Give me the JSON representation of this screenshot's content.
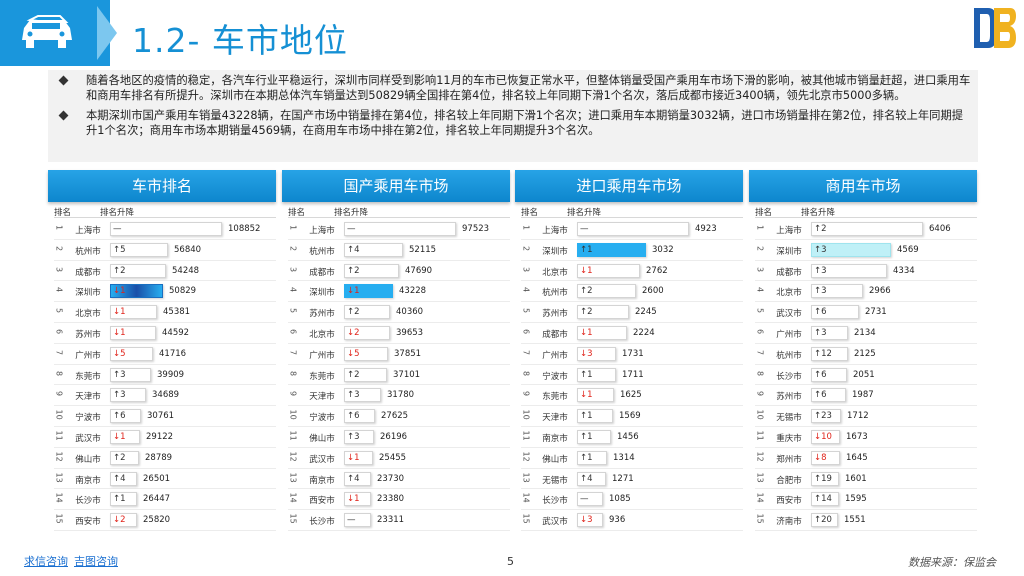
{
  "title": "1.2- 车市地位",
  "bullets": [
    "随着各地区的疫情的稳定，各汽车行业平稳运行，深圳市同样受到影响11月的车市已恢复正常水平，但整体销量受国产乘用车市场下滑的影响，被其他城市销量赶超，进口乘用车和商用车排名有所提升。深圳市在本期总体汽车销量达到50829辆全国排在第4位，排名较上年同期下滑1个名次，落后成都市接近3400辆，领先北京市5000多辆。",
    "本期深圳市国产乘用车销量43228辆，在国产市场中销量排在第4位，排名较上年同期下滑1个名次；进口乘用车本期销量3032辆，进口市场销量排在第2位，排名较上年同期提升1个名次；商用车市场本期销量4569辆，在商用车市场中排在第2位，排名较上年同期提升3个名次。"
  ],
  "col_rank": "排名",
  "col_change": "排名升降",
  "panels": [
    {
      "title": "车市排名",
      "rows": [
        {
          "rank": "1",
          "city": "上海市",
          "change": "—",
          "dir": "flat",
          "value": "108852",
          "ratio": 1.0,
          "hl": ""
        },
        {
          "rank": "2",
          "city": "杭州市",
          "change": "↑5",
          "dir": "up",
          "value": "56840",
          "ratio": 0.52,
          "hl": ""
        },
        {
          "rank": "3",
          "city": "成都市",
          "change": "↑2",
          "dir": "up",
          "value": "54248",
          "ratio": 0.5,
          "hl": ""
        },
        {
          "rank": "4",
          "city": "深圳市",
          "change": "↓1",
          "dir": "down",
          "value": "50829",
          "ratio": 0.47,
          "hl": "dark"
        },
        {
          "rank": "5",
          "city": "北京市",
          "change": "↓1",
          "dir": "down",
          "value": "45381",
          "ratio": 0.42,
          "hl": ""
        },
        {
          "rank": "6",
          "city": "苏州市",
          "change": "↓1",
          "dir": "down",
          "value": "44592",
          "ratio": 0.41,
          "hl": ""
        },
        {
          "rank": "7",
          "city": "广州市",
          "change": "↓5",
          "dir": "down",
          "value": "41716",
          "ratio": 0.38,
          "hl": ""
        },
        {
          "rank": "8",
          "city": "东莞市",
          "change": "↑3",
          "dir": "up",
          "value": "39909",
          "ratio": 0.37,
          "hl": ""
        },
        {
          "rank": "9",
          "city": "天津市",
          "change": "↑3",
          "dir": "up",
          "value": "34689",
          "ratio": 0.32,
          "hl": ""
        },
        {
          "rank": "10",
          "city": "宁波市",
          "change": "↑6",
          "dir": "up",
          "value": "30761",
          "ratio": 0.28,
          "hl": ""
        },
        {
          "rank": "11",
          "city": "武汉市",
          "change": "↓1",
          "dir": "down",
          "value": "29122",
          "ratio": 0.27,
          "hl": ""
        },
        {
          "rank": "12",
          "city": "佛山市",
          "change": "↑2",
          "dir": "up",
          "value": "28789",
          "ratio": 0.26,
          "hl": ""
        },
        {
          "rank": "13",
          "city": "南京市",
          "change": "↑4",
          "dir": "up",
          "value": "26501",
          "ratio": 0.24,
          "hl": ""
        },
        {
          "rank": "14",
          "city": "长沙市",
          "change": "↑1",
          "dir": "up",
          "value": "26447",
          "ratio": 0.24,
          "hl": ""
        },
        {
          "rank": "15",
          "city": "西安市",
          "change": "↓2",
          "dir": "down",
          "value": "25820",
          "ratio": 0.24,
          "hl": ""
        }
      ]
    },
    {
      "title": "国产乘用车市场",
      "rows": [
        {
          "rank": "1",
          "city": "上海市",
          "change": "—",
          "dir": "flat",
          "value": "97523",
          "ratio": 1.0,
          "hl": ""
        },
        {
          "rank": "2",
          "city": "杭州市",
          "change": "↑4",
          "dir": "up",
          "value": "52115",
          "ratio": 0.53,
          "hl": ""
        },
        {
          "rank": "3",
          "city": "成都市",
          "change": "↑2",
          "dir": "up",
          "value": "47690",
          "ratio": 0.49,
          "hl": ""
        },
        {
          "rank": "4",
          "city": "深圳市",
          "change": "↓1",
          "dir": "down",
          "value": "43228",
          "ratio": 0.44,
          "hl": "blue"
        },
        {
          "rank": "5",
          "city": "苏州市",
          "change": "↑2",
          "dir": "up",
          "value": "40360",
          "ratio": 0.41,
          "hl": ""
        },
        {
          "rank": "6",
          "city": "北京市",
          "change": "↓2",
          "dir": "down",
          "value": "39653",
          "ratio": 0.41,
          "hl": ""
        },
        {
          "rank": "7",
          "city": "广州市",
          "change": "↓5",
          "dir": "down",
          "value": "37851",
          "ratio": 0.39,
          "hl": ""
        },
        {
          "rank": "8",
          "city": "东莞市",
          "change": "↑2",
          "dir": "up",
          "value": "37101",
          "ratio": 0.38,
          "hl": ""
        },
        {
          "rank": "9",
          "city": "天津市",
          "change": "↑3",
          "dir": "up",
          "value": "31780",
          "ratio": 0.33,
          "hl": ""
        },
        {
          "rank": "10",
          "city": "宁波市",
          "change": "↑6",
          "dir": "up",
          "value": "27625",
          "ratio": 0.28,
          "hl": ""
        },
        {
          "rank": "11",
          "city": "佛山市",
          "change": "↑3",
          "dir": "up",
          "value": "26196",
          "ratio": 0.27,
          "hl": ""
        },
        {
          "rank": "12",
          "city": "武汉市",
          "change": "↓1",
          "dir": "down",
          "value": "25455",
          "ratio": 0.26,
          "hl": ""
        },
        {
          "rank": "13",
          "city": "南京市",
          "change": "↑4",
          "dir": "up",
          "value": "23730",
          "ratio": 0.24,
          "hl": ""
        },
        {
          "rank": "14",
          "city": "西安市",
          "change": "↓1",
          "dir": "down",
          "value": "23380",
          "ratio": 0.24,
          "hl": ""
        },
        {
          "rank": "15",
          "city": "长沙市",
          "change": "—",
          "dir": "flat",
          "value": "23311",
          "ratio": 0.24,
          "hl": ""
        }
      ]
    },
    {
      "title": "进口乘用车市场",
      "rows": [
        {
          "rank": "1",
          "city": "上海市",
          "change": "—",
          "dir": "flat",
          "value": "4923",
          "ratio": 1.0,
          "hl": ""
        },
        {
          "rank": "2",
          "city": "深圳市",
          "change": "↑1",
          "dir": "up",
          "value": "3032",
          "ratio": 0.62,
          "hl": "blue"
        },
        {
          "rank": "3",
          "city": "北京市",
          "change": "↓1",
          "dir": "down",
          "value": "2762",
          "ratio": 0.56,
          "hl": ""
        },
        {
          "rank": "4",
          "city": "杭州市",
          "change": "↑2",
          "dir": "up",
          "value": "2600",
          "ratio": 0.53,
          "hl": ""
        },
        {
          "rank": "5",
          "city": "苏州市",
          "change": "↑2",
          "dir": "up",
          "value": "2245",
          "ratio": 0.46,
          "hl": ""
        },
        {
          "rank": "6",
          "city": "成都市",
          "change": "↓1",
          "dir": "down",
          "value": "2224",
          "ratio": 0.45,
          "hl": ""
        },
        {
          "rank": "7",
          "city": "广州市",
          "change": "↓3",
          "dir": "down",
          "value": "1731",
          "ratio": 0.35,
          "hl": ""
        },
        {
          "rank": "8",
          "city": "宁波市",
          "change": "↑1",
          "dir": "up",
          "value": "1711",
          "ratio": 0.35,
          "hl": ""
        },
        {
          "rank": "9",
          "city": "东莞市",
          "change": "↓1",
          "dir": "down",
          "value": "1625",
          "ratio": 0.33,
          "hl": ""
        },
        {
          "rank": "10",
          "city": "天津市",
          "change": "↑1",
          "dir": "up",
          "value": "1569",
          "ratio": 0.32,
          "hl": ""
        },
        {
          "rank": "11",
          "city": "南京市",
          "change": "↑1",
          "dir": "up",
          "value": "1456",
          "ratio": 0.3,
          "hl": ""
        },
        {
          "rank": "12",
          "city": "佛山市",
          "change": "↑1",
          "dir": "up",
          "value": "1314",
          "ratio": 0.27,
          "hl": ""
        },
        {
          "rank": "13",
          "city": "无锡市",
          "change": "↑4",
          "dir": "up",
          "value": "1271",
          "ratio": 0.26,
          "hl": ""
        },
        {
          "rank": "14",
          "city": "长沙市",
          "change": "—",
          "dir": "flat",
          "value": "1085",
          "ratio": 0.22,
          "hl": ""
        },
        {
          "rank": "15",
          "city": "武汉市",
          "change": "↓3",
          "dir": "down",
          "value": "936",
          "ratio": 0.19,
          "hl": ""
        }
      ]
    },
    {
      "title": "商用车市场",
      "rows": [
        {
          "rank": "1",
          "city": "上海市",
          "change": "↑2",
          "dir": "up",
          "value": "6406",
          "ratio": 1.0,
          "hl": ""
        },
        {
          "rank": "2",
          "city": "深圳市",
          "change": "↑3",
          "dir": "up",
          "value": "4569",
          "ratio": 0.71,
          "hl": "light"
        },
        {
          "rank": "3",
          "city": "成都市",
          "change": "↑3",
          "dir": "up",
          "value": "4334",
          "ratio": 0.68,
          "hl": ""
        },
        {
          "rank": "4",
          "city": "北京市",
          "change": "↑3",
          "dir": "up",
          "value": "2966",
          "ratio": 0.46,
          "hl": ""
        },
        {
          "rank": "5",
          "city": "武汉市",
          "change": "↑6",
          "dir": "up",
          "value": "2731",
          "ratio": 0.43,
          "hl": ""
        },
        {
          "rank": "6",
          "city": "广州市",
          "change": "↑3",
          "dir": "up",
          "value": "2134",
          "ratio": 0.33,
          "hl": ""
        },
        {
          "rank": "7",
          "city": "杭州市",
          "change": "↑12",
          "dir": "up",
          "value": "2125",
          "ratio": 0.33,
          "hl": ""
        },
        {
          "rank": "8",
          "city": "长沙市",
          "change": "↑6",
          "dir": "up",
          "value": "2051",
          "ratio": 0.32,
          "hl": ""
        },
        {
          "rank": "9",
          "city": "苏州市",
          "change": "↑6",
          "dir": "up",
          "value": "1987",
          "ratio": 0.31,
          "hl": ""
        },
        {
          "rank": "10",
          "city": "无锡市",
          "change": "↑23",
          "dir": "up",
          "value": "1712",
          "ratio": 0.27,
          "hl": ""
        },
        {
          "rank": "11",
          "city": "重庆市",
          "change": "↓10",
          "dir": "down",
          "value": "1673",
          "ratio": 0.26,
          "hl": ""
        },
        {
          "rank": "12",
          "city": "郑州市",
          "change": "↓8",
          "dir": "down",
          "value": "1645",
          "ratio": 0.26,
          "hl": ""
        },
        {
          "rank": "13",
          "city": "合肥市",
          "change": "↑19",
          "dir": "up",
          "value": "1601",
          "ratio": 0.25,
          "hl": ""
        },
        {
          "rank": "14",
          "city": "西安市",
          "change": "↑14",
          "dir": "up",
          "value": "1595",
          "ratio": 0.25,
          "hl": ""
        },
        {
          "rank": "15",
          "city": "济南市",
          "change": "↑20",
          "dir": "up",
          "value": "1551",
          "ratio": 0.24,
          "hl": ""
        }
      ]
    }
  ],
  "footer": {
    "link1": "求信咨询",
    "link2": "吉图咨询",
    "page": "5",
    "source": "数据来源：保监会"
  },
  "icons": {
    "header": "car-icon",
    "logo": "brand-logo"
  },
  "colors": {
    "accent": "#1a96dc",
    "down": "#e0241b",
    "highlight": "#27aef0"
  }
}
